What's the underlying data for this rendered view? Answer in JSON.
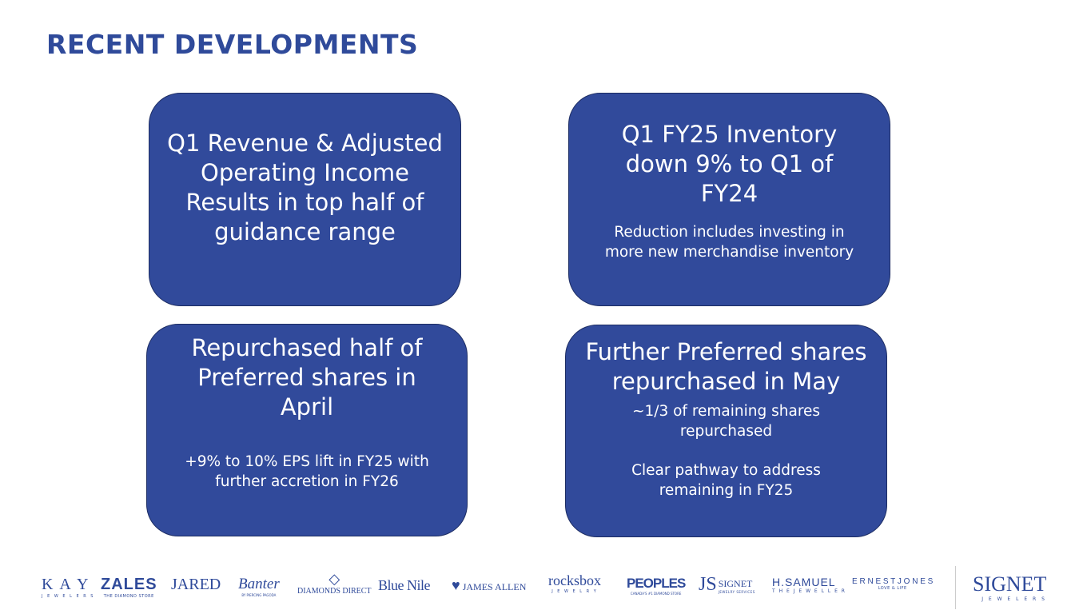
{
  "title": "RECENT DEVELOPMENTS",
  "cards": [
    {
      "headline": "Q1 Revenue & Adjusted Operating Income Results in top half of guidance range"
    },
    {
      "headline": "Q1 FY25 Inventory down 9% to Q1 of FY24",
      "sub": "Reduction includes investing in more new merchandise inventory"
    },
    {
      "headline": "Repurchased half of Preferred shares in April",
      "sub": "+9% to 10% EPS lift in FY25 with further accretion in FY26"
    },
    {
      "headline": "Further Preferred shares repurchased in May",
      "sub": "~1/3 of remaining shares repurchased",
      "sub2": "Clear pathway to address remaining in FY25"
    }
  ],
  "logos": [
    {
      "name": "K A Y",
      "tag": "J E W E L E R S"
    },
    {
      "name": "ZALES",
      "tag": "THE DIAMOND STORE"
    },
    {
      "name": "JARED"
    },
    {
      "name": "Banter",
      "tag": "BY PIERCING PAGODA"
    },
    {
      "name": "DIAMONDS DIRECT"
    },
    {
      "name": "Blue Nile"
    },
    {
      "name": "JAMES ALLEN"
    },
    {
      "name": "rocksbox",
      "tag": "J E W E L R Y"
    },
    {
      "name": "PEOPLES",
      "tag": "CANADA'S #1 DIAMOND STORE"
    },
    {
      "name": "SIGNET",
      "tag": "JEWELRY SERVICES"
    },
    {
      "name": "H.SAMUEL",
      "tag": "T H E   J E W E L L E R"
    },
    {
      "name": "E R N E S T   J O N E S",
      "tag": "LOVE & LIFE"
    },
    {
      "name": "SIGNET",
      "tag": "J E W E L E R S"
    }
  ],
  "colors": {
    "brand_blue": "#2f4a9a",
    "card_fill": "#314a9b"
  }
}
